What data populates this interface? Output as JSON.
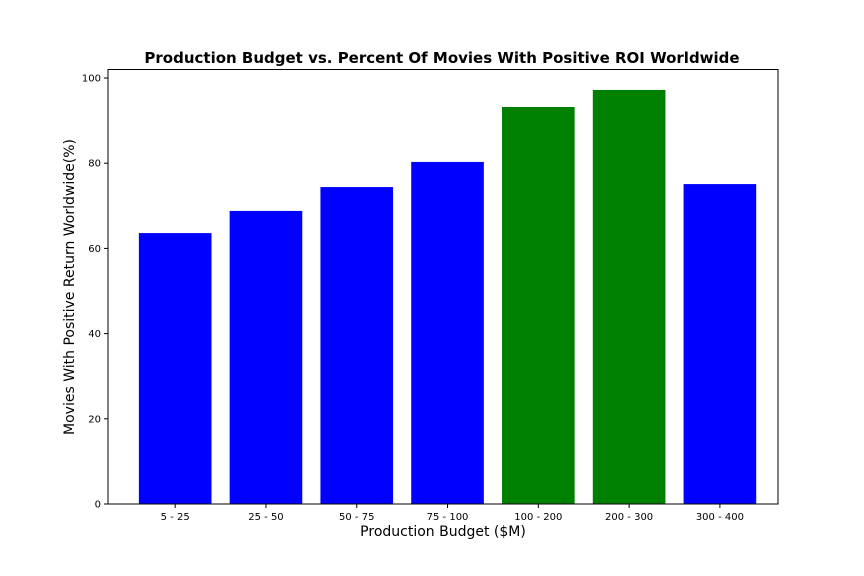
{
  "chart_data": {
    "type": "bar",
    "title": "Production Budget vs. Percent Of Movies With Positive ROI Worldwide",
    "xlabel": "Production Budget ($M)",
    "ylabel": "Movies With Positive Return Worldwide(%)",
    "categories": [
      "5 - 25",
      "25 - 50",
      "50 - 75",
      "75 - 100",
      "100 - 200",
      "200 - 300",
      "300 - 400"
    ],
    "values": [
      63.6,
      68.8,
      74.4,
      80.3,
      93.2,
      97.2,
      75.1
    ],
    "bar_colors": [
      "#0000ff",
      "#0000ff",
      "#0000ff",
      "#0000ff",
      "#008000",
      "#008000",
      "#0000ff"
    ],
    "ylim": [
      0,
      102
    ],
    "yticks": [
      0,
      20,
      40,
      60,
      80,
      100
    ],
    "grid": false,
    "legend": "none"
  }
}
